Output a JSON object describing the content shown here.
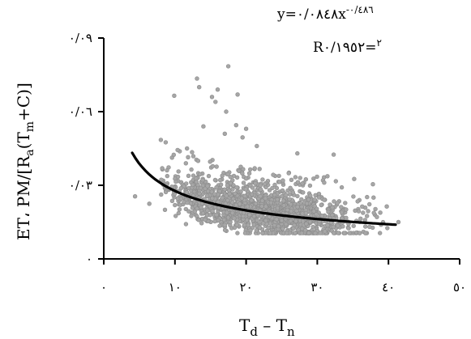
{
  "chart_data": {
    "type": "scatter",
    "xlabel": {
      "main": "T",
      "sub1": "d",
      "sep": " – ",
      "main2": "T",
      "sub2": "n"
    },
    "ylabel": {
      "a": "ET، PM/[R",
      "sub1": "a",
      "b": "(T",
      "sub2": "m",
      "c": "+C)]"
    },
    "xlim": [
      0,
      50
    ],
    "ylim": [
      0,
      0.09
    ],
    "xticks": [
      0,
      10,
      20,
      30,
      40,
      50
    ],
    "xtick_labels": [
      "٠",
      "١٠",
      "٢٠",
      "٣٠",
      "٤٠",
      "٥٠"
    ],
    "yticks": [
      0,
      0.03,
      0.06,
      0.09
    ],
    "ytick_labels": [
      "٠",
      "٠/٠٣",
      "٠/٠٦",
      "٠/٠٩"
    ],
    "equation": "y=٠/٠٨٤٨x",
    "equation_exponent": "-٠/٤٨٦",
    "r2_label": "R",
    "r2_exponent": "٢",
    "r2_value": "=٠/١٩٥٢",
    "trendline": {
      "a": 0.0848,
      "b": -0.486,
      "x_range": [
        4,
        41
      ]
    },
    "outliers": [
      {
        "x": 17.5,
        "y": 0.0785
      },
      {
        "x": 13.1,
        "y": 0.0735
      },
      {
        "x": 13.4,
        "y": 0.07
      },
      {
        "x": 16.0,
        "y": 0.069
      },
      {
        "x": 15.2,
        "y": 0.066
      },
      {
        "x": 18.8,
        "y": 0.067
      },
      {
        "x": 9.9,
        "y": 0.0665
      },
      {
        "x": 15.7,
        "y": 0.064
      },
      {
        "x": 17.2,
        "y": 0.06
      },
      {
        "x": 18.6,
        "y": 0.0545
      },
      {
        "x": 20.0,
        "y": 0.053
      },
      {
        "x": 8.7,
        "y": 0.0475
      },
      {
        "x": 19.5,
        "y": 0.0495
      },
      {
        "x": 11.7,
        "y": 0.045
      },
      {
        "x": 12.4,
        "y": 0.0435
      },
      {
        "x": 21.5,
        "y": 0.046
      },
      {
        "x": 4.4,
        "y": 0.0255
      },
      {
        "x": 6.4,
        "y": 0.0225
      },
      {
        "x": 8.6,
        "y": 0.02
      },
      {
        "x": 10.1,
        "y": 0.0175
      },
      {
        "x": 27.2,
        "y": 0.043
      },
      {
        "x": 37.9,
        "y": 0.025
      },
      {
        "x": 41.4,
        "y": 0.015
      },
      {
        "x": 32.3,
        "y": 0.0425
      },
      {
        "x": 14.0,
        "y": 0.054
      },
      {
        "x": 17.0,
        "y": 0.051
      }
    ],
    "cloud": {
      "x_min": 8,
      "x_max": 41,
      "center_x": 22,
      "count": 1600
    },
    "colors": {
      "points": "#a6a6a6",
      "point_stroke": "#8c8c8c",
      "trendline": "#000000",
      "axes": "#000000"
    }
  }
}
